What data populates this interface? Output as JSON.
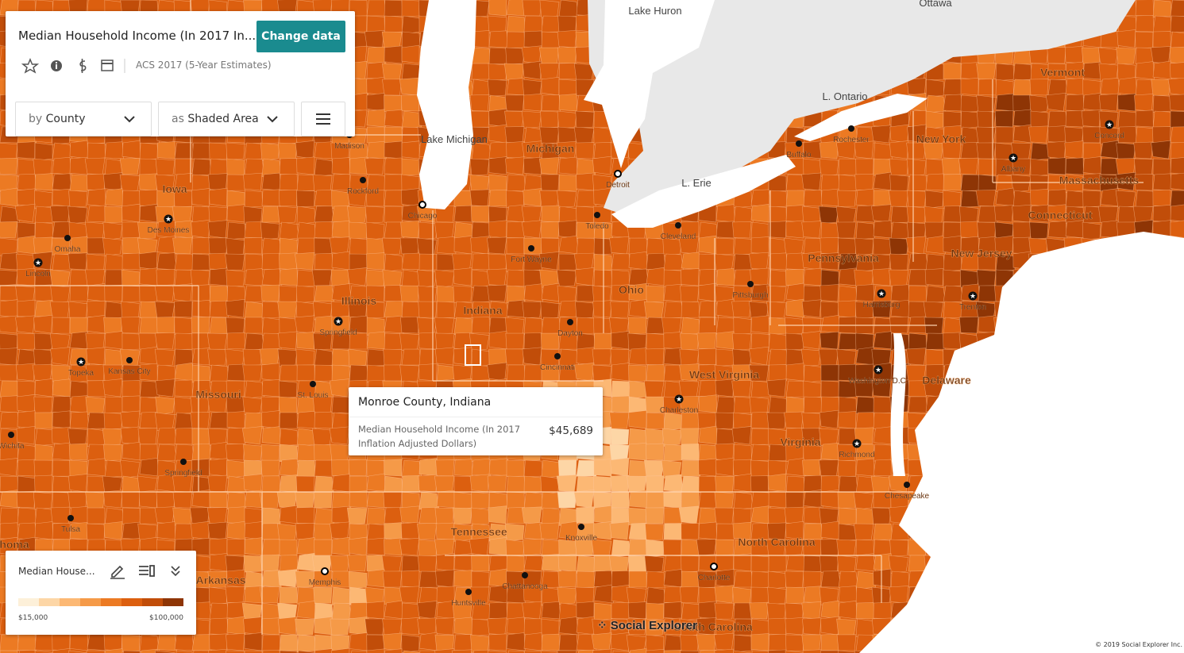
{
  "header": {
    "title": "Median Household Income (In 2017 In...",
    "button": "Change data",
    "survey": "ACS 2017 (5-Year Estimates)"
  },
  "controls": {
    "geography_prefix": "by",
    "geography": "County",
    "display_prefix": "as",
    "display": "Shaded Area"
  },
  "tooltip": {
    "title": "Monroe County, Indiana",
    "label": "Median Household Income (In 2017 Inflation Adjusted Dollars)",
    "value": "$45,689"
  },
  "legend": {
    "title": "Median House...",
    "min": "$15,000",
    "max": "$100,000",
    "colors": [
      "#fdf0d9",
      "#fdd6a6",
      "#fcb874",
      "#f59a48",
      "#ec7a23",
      "#dc5f0f",
      "#c14d09",
      "#8e3505"
    ]
  },
  "map": {
    "water_labels": [
      "Lake Huron",
      "Lake Michigan",
      "L. Ontario",
      "L. Erie"
    ],
    "region_labels": [
      "Ottawa",
      "Iowa",
      "Illinois",
      "Indiana",
      "Ohio",
      "Michigan",
      "Missouri",
      "Arkansas",
      "Tennessee",
      "Pennsylvania",
      "New York",
      "Vermont",
      "Massachusetts",
      "Connecticut",
      "New Jersey",
      "West Virginia",
      "Virginia",
      "North Carolina",
      "South Carolina",
      "Delaware",
      "homa"
    ],
    "cities": [
      {
        "name": "Madison",
        "marker": "dot"
      },
      {
        "name": "Rockford",
        "marker": "dot"
      },
      {
        "name": "Chicago",
        "marker": "ring"
      },
      {
        "name": "Des Moines",
        "marker": "star"
      },
      {
        "name": "Omaha",
        "marker": "dot"
      },
      {
        "name": "Lincoln",
        "marker": "star"
      },
      {
        "name": "Topeka",
        "marker": "star"
      },
      {
        "name": "Kansas City",
        "marker": "dot"
      },
      {
        "name": "Wichita",
        "marker": "dot"
      },
      {
        "name": "Springfield",
        "marker": "star"
      },
      {
        "name": "Springfield",
        "marker": "dot"
      },
      {
        "name": "St. Louis",
        "marker": "dot"
      },
      {
        "name": "Tulsa",
        "marker": "dot"
      },
      {
        "name": "Memphis",
        "marker": "ring"
      },
      {
        "name": "Fort Wayne",
        "marker": "dot"
      },
      {
        "name": "Detroit",
        "marker": "ring"
      },
      {
        "name": "Toledo",
        "marker": "dot"
      },
      {
        "name": "Cleveland",
        "marker": "dot"
      },
      {
        "name": "Dayton",
        "marker": "dot"
      },
      {
        "name": "Cincinnati",
        "marker": "dot"
      },
      {
        "name": "Charleston",
        "marker": "star"
      },
      {
        "name": "Pittsburgh",
        "marker": "dot"
      },
      {
        "name": "Harrisburg",
        "marker": "star"
      },
      {
        "name": "Trenton",
        "marker": "star"
      },
      {
        "name": "Washington D.C.",
        "marker": "star"
      },
      {
        "name": "Richmond",
        "marker": "star"
      },
      {
        "name": "Chesapeake",
        "marker": "dot"
      },
      {
        "name": "Knoxville",
        "marker": "dot"
      },
      {
        "name": "Chattanooga",
        "marker": "dot"
      },
      {
        "name": "Huntsville",
        "marker": "dot"
      },
      {
        "name": "Charlotte",
        "marker": "ring"
      },
      {
        "name": "Buffalo",
        "marker": "dot"
      },
      {
        "name": "Rochester",
        "marker": "dot"
      },
      {
        "name": "Albany",
        "marker": "star"
      },
      {
        "name": "Concord",
        "marker": "star"
      }
    ]
  },
  "branding": "Social Explorer",
  "copyright": "© 2019 Social Explorer Inc."
}
